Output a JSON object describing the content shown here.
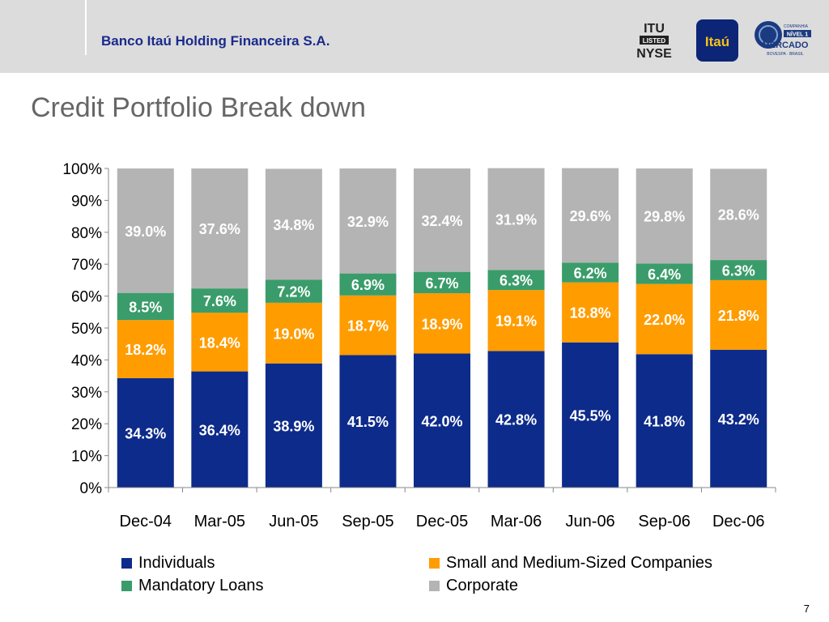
{
  "header": {
    "company": "Banco Itaú Holding Financeira S.A.",
    "logos": {
      "ituNyse": {
        "line1": "ITU",
        "line2": "LISTED",
        "line3": "NYSE"
      },
      "itau": "Itaú",
      "nivel": {
        "small": "COMPANHIA",
        "badge": "NÍVEL 1",
        "main": "MERCADO",
        "sub": "BOVESPA · BRASIL"
      }
    }
  },
  "slide": {
    "title": "Credit Portfolio Break down",
    "page": "7"
  },
  "chart_data": {
    "type": "bar",
    "stacked": true,
    "categories": [
      "Dec-04",
      "Mar-05",
      "Jun-05",
      "Sep-05",
      "Dec-05",
      "Mar-06",
      "Jun-06",
      "Sep-06",
      "Dec-06"
    ],
    "series": [
      {
        "name": "Individuals",
        "color": "#0d2b8a",
        "values": [
          34.3,
          36.4,
          38.9,
          41.5,
          42.0,
          42.8,
          45.5,
          41.8,
          43.2
        ]
      },
      {
        "name": "Small and Medium-Sized Companies",
        "color": "#ff9c00",
        "values": [
          18.2,
          18.4,
          19.0,
          18.7,
          18.9,
          19.1,
          18.8,
          22.0,
          21.8
        ]
      },
      {
        "name": "Mandatory Loans",
        "color": "#3a9c6a",
        "values": [
          8.5,
          7.6,
          7.2,
          6.9,
          6.7,
          6.3,
          6.2,
          6.4,
          6.3
        ]
      },
      {
        "name": "Corporate",
        "color": "#b4b4b4",
        "values": [
          39.0,
          37.6,
          34.8,
          32.9,
          32.4,
          31.9,
          29.6,
          29.8,
          28.6
        ]
      }
    ],
    "ylim": [
      0,
      100
    ],
    "yticks": [
      "0%",
      "10%",
      "20%",
      "30%",
      "40%",
      "50%",
      "60%",
      "70%",
      "80%",
      "90%",
      "100%"
    ],
    "legend_position": "bottom"
  }
}
